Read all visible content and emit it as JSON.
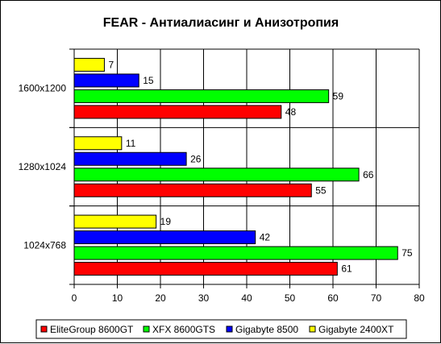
{
  "chart_data": {
    "type": "bar",
    "orientation": "horizontal",
    "title": "FEAR - Антиалиасинг и Анизотропия",
    "xlabel": "",
    "ylabel": "",
    "xlim": [
      0,
      80
    ],
    "x_ticks": [
      "0",
      "10",
      "20",
      "30",
      "40",
      "50",
      "60",
      "70",
      "80"
    ],
    "grid": "vertical",
    "legend_position": "bottom",
    "categories": [
      "1600x1200",
      "1280x1024",
      "1024x768"
    ],
    "series": [
      {
        "name": "EliteGroup 8600GT",
        "color": "#ff0000",
        "values": [
          48,
          55,
          61
        ]
      },
      {
        "name": "XFX 8600GTS",
        "color": "#00ff00",
        "values": [
          59,
          66,
          75
        ]
      },
      {
        "name": "Gigabyte 8500",
        "color": "#0000ff",
        "values": [
          15,
          26,
          42
        ]
      },
      {
        "name": "Gigabyte 2400XT",
        "color": "#ffff00",
        "values": [
          7,
          11,
          19
        ]
      }
    ]
  }
}
